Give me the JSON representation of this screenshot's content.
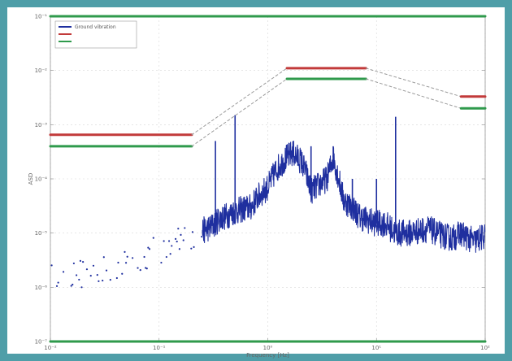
{
  "chart_data": {
    "type": "line",
    "title": "",
    "xlabel": "Frequency [Hz]",
    "ylabel": "ASD",
    "x_scale": "log",
    "y_scale": "log",
    "xlim": [
      0.01,
      100
    ],
    "ylim": [
      1e-07,
      0.1
    ],
    "x_tick_labels": [
      "10⁻²",
      "10⁻¹",
      "10⁰",
      "10¹",
      "10²"
    ],
    "y_tick_labels": [
      "10⁻¹",
      "10⁻²",
      "10⁻³",
      "10⁻⁴",
      "10⁻⁵",
      "10⁻⁶",
      "10⁻⁷"
    ],
    "legend_position": "top-left",
    "grid": true,
    "series": [
      {
        "name": "Ground vibration",
        "color": "#1f2f9f",
        "kind": "measured-spectrum",
        "points": [
          [
            0.01,
            1.6e-06
          ],
          [
            0.012,
            8e-07
          ],
          [
            0.015,
            1.5e-06
          ],
          [
            0.02,
            1.8e-06
          ],
          [
            0.025,
            2.2e-06
          ],
          [
            0.03,
            2e-06
          ],
          [
            0.04,
            2.5e-06
          ],
          [
            0.05,
            2.8e-06
          ],
          [
            0.06,
            3.5e-06
          ],
          [
            0.08,
            4e-06
          ],
          [
            0.1,
            5e-06
          ],
          [
            0.13,
            6e-06
          ],
          [
            0.16,
            7.5e-06
          ],
          [
            0.2,
            9e-06
          ],
          [
            0.25,
            1.1e-05
          ],
          [
            0.3,
            1.3e-05
          ],
          [
            0.33,
            1.5e-05
          ],
          [
            0.35,
            1.8e-05
          ],
          [
            0.4,
            2e-05
          ],
          [
            0.5,
            2.5e-05
          ],
          [
            0.6,
            2.8e-05
          ],
          [
            0.7,
            3e-05
          ],
          [
            0.8,
            4.5e-05
          ],
          [
            1.0,
            7e-05
          ],
          [
            1.2,
            0.00015
          ],
          [
            1.5,
            0.00025
          ],
          [
            1.7,
            0.0003
          ],
          [
            2.0,
            0.00022
          ],
          [
            2.2,
            0.00015
          ],
          [
            2.5,
            6e-05
          ],
          [
            3.0,
            8e-05
          ],
          [
            3.5,
            0.0001
          ],
          [
            4.0,
            0.00025
          ],
          [
            4.5,
            0.0001
          ],
          [
            5.0,
            4e-05
          ],
          [
            6.0,
            3e-05
          ],
          [
            7.0,
            2e-05
          ],
          [
            8.0,
            1.8e-05
          ],
          [
            10.0,
            1.5e-05
          ],
          [
            12.0,
            1.5e-05
          ],
          [
            15.0,
            1e-05
          ],
          [
            20.0,
            1e-05
          ],
          [
            30.0,
            1.2e-05
          ],
          [
            40.0,
            9e-06
          ],
          [
            50.0,
            8e-06
          ],
          [
            60.0,
            1e-05
          ],
          [
            70.0,
            8e-06
          ],
          [
            80.0,
            7e-06
          ],
          [
            100.0,
            9e-06
          ]
        ],
        "peaks": [
          [
            0.33,
            0.0005
          ],
          [
            0.5,
            0.0015
          ],
          [
            1.7,
            0.0004
          ],
          [
            2.5,
            0.0004
          ],
          [
            4.0,
            0.0004
          ],
          [
            6.0,
            0.0001
          ],
          [
            10.0,
            0.0001
          ],
          [
            15.0,
            0.0014
          ]
        ]
      },
      {
        "name": "",
        "color": "#c23a3a",
        "kind": "threshold",
        "points": [
          [
            0.01,
            0.00065
          ],
          [
            0.2,
            0.00065
          ],
          [
            1.5,
            0.011
          ],
          [
            8.0,
            0.011
          ],
          [
            60.0,
            0.0033
          ],
          [
            100.0,
            0.0033
          ]
        ]
      },
      {
        "name": "",
        "color": "#2f9a4c",
        "kind": "threshold",
        "points": [
          [
            0.01,
            0.0004
          ],
          [
            0.2,
            0.0004
          ],
          [
            1.5,
            0.007
          ],
          [
            8.0,
            0.007
          ],
          [
            60.0,
            0.002
          ],
          [
            100.0,
            0.002
          ]
        ]
      },
      {
        "name": "",
        "color": "#2f9a4c",
        "kind": "bound",
        "points": [
          [
            0.01,
            0.1
          ],
          [
            100.0,
            0.1
          ]
        ]
      },
      {
        "name": "",
        "color": "#2f9a4c",
        "kind": "bound",
        "points": [
          [
            0.01,
            1e-07
          ],
          [
            100.0,
            1e-07
          ]
        ]
      }
    ]
  }
}
